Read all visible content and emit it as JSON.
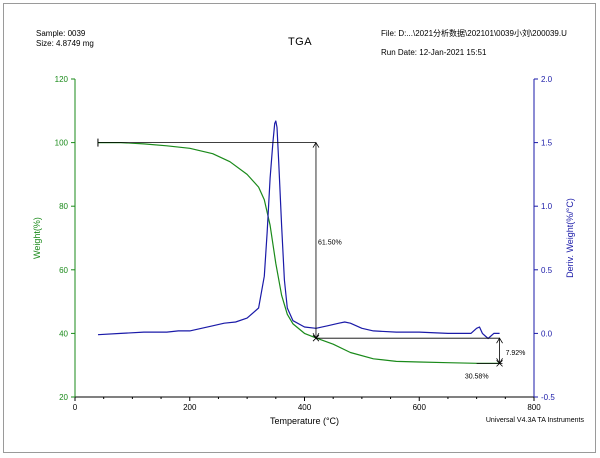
{
  "header": {
    "sample_label": "Sample: 0039",
    "size_label": "Size:  4.8749 mg",
    "title": "TGA",
    "file_label": "File: D:...\\2021分析数据\\202101\\0039小刘\\200039.U",
    "run_date_label": "Run Date: 12-Jan-2021 15:51",
    "footer": "Universal V4.3A TA Instruments"
  },
  "colors": {
    "weight": "#1a8a1a",
    "deriv": "#1a1aa8",
    "axis": "#000000",
    "annotation": "#000000"
  },
  "chart_data": {
    "type": "line",
    "xlabel": "Temperature (°C)",
    "ylabel": "Weight(%)",
    "y2label": "Deriv. Weight(%/°C)",
    "xlim": [
      0,
      800
    ],
    "ylim": [
      20,
      120
    ],
    "y2lim": [
      -0.5,
      2.0
    ],
    "x_ticks": [
      0,
      200,
      400,
      600,
      800
    ],
    "y_ticks": [
      20,
      40,
      60,
      80,
      100,
      120
    ],
    "y2_ticks": [
      "-0.5",
      "0.0",
      "0.5",
      "1.0",
      "1.5",
      "2.0"
    ],
    "grid": false,
    "series": [
      {
        "axis": "left",
        "color": "#1a8a1a",
        "x": [
          40,
          80,
          120,
          160,
          200,
          240,
          270,
          300,
          320,
          330,
          340,
          350,
          360,
          370,
          380,
          400,
          420,
          450,
          480,
          520,
          560,
          600,
          650,
          700,
          740
        ],
        "y": [
          100,
          100,
          99.6,
          99,
          98.2,
          96.5,
          94,
          90,
          86,
          82,
          74,
          62,
          52,
          46,
          43,
          40,
          38.6,
          36.6,
          34,
          32,
          31.2,
          31,
          30.8,
          30.6,
          30.6
        ]
      },
      {
        "axis": "right",
        "color": "#1a1aa8",
        "x": [
          40,
          80,
          120,
          160,
          180,
          200,
          240,
          260,
          280,
          300,
          320,
          330,
          335,
          340,
          345,
          348,
          350,
          352,
          355,
          360,
          365,
          370,
          380,
          400,
          420,
          440,
          460,
          470,
          480,
          500,
          520,
          560,
          600,
          650,
          690,
          700,
          705,
          710,
          720,
          730,
          740
        ],
        "y": [
          -0.01,
          0.0,
          0.01,
          0.01,
          0.02,
          0.02,
          0.06,
          0.08,
          0.09,
          0.12,
          0.2,
          0.45,
          0.8,
          1.22,
          1.5,
          1.65,
          1.67,
          1.62,
          1.35,
          0.85,
          0.42,
          0.2,
          0.1,
          0.05,
          0.04,
          0.06,
          0.08,
          0.09,
          0.08,
          0.04,
          0.02,
          0.01,
          0.01,
          0.0,
          0.0,
          0.04,
          0.05,
          0.0,
          -0.04,
          0.0,
          0.0
        ]
      }
    ],
    "annotations": [
      {
        "label": "61.50%",
        "x": 420,
        "y_from": 100,
        "y_to": 38.5
      },
      {
        "label": "7.92%",
        "x": 740,
        "y_from": 38.5,
        "y_to": 30.58
      },
      {
        "label": "30.58%",
        "x": 740,
        "y": 30.58
      }
    ],
    "reference_lines": [
      {
        "y": 100,
        "x_from": 40,
        "x_to": 420
      },
      {
        "y": 38.5,
        "x_from": 420,
        "x_to": 740
      },
      {
        "y": 30.58,
        "x_from": 700,
        "x_to": 745
      }
    ]
  }
}
